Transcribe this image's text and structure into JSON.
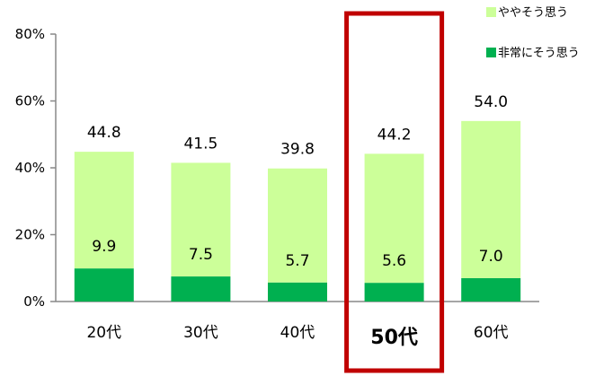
{
  "chart_data": {
    "type": "bar",
    "stacked": true,
    "categories": [
      "20代",
      "30代",
      "40代",
      "50代",
      "60代"
    ],
    "series": [
      {
        "name": "非常にそう思う",
        "values": [
          9.9,
          7.5,
          5.7,
          5.6,
          7.0
        ],
        "color": "#00b050"
      },
      {
        "name": "ややそう思う",
        "values": [
          34.9,
          34.0,
          34.1,
          38.6,
          47.0
        ],
        "color": "#ccff99"
      }
    ],
    "totals": [
      44.8,
      41.5,
      39.8,
      44.2,
      54.0
    ],
    "total_labels": [
      "44.8",
      "41.5",
      "39.8",
      "44.2",
      "54.0"
    ],
    "bottom_labels": [
      "9.9",
      "7.5",
      "5.7",
      "5.6",
      "7.0"
    ],
    "ylim": [
      0,
      80
    ],
    "yticks": [
      0,
      20,
      40,
      60,
      80
    ],
    "ytick_labels": [
      "0%",
      "20%",
      "40%",
      "60%",
      "80%"
    ],
    "legend": [
      "ややそう思う",
      "非常にそう思う"
    ],
    "legend_position": "top-right",
    "highlight": {
      "category_index": 3,
      "color": "#c00000"
    },
    "grid": false
  }
}
